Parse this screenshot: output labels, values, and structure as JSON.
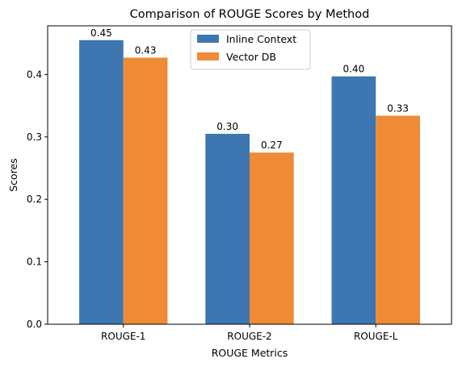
{
  "chart_data": {
    "type": "bar",
    "title": "Comparison of ROUGE Scores by Method",
    "xlabel": "ROUGE Metrics",
    "ylabel": "Scores",
    "categories": [
      "ROUGE-1",
      "ROUGE-2",
      "ROUGE-L"
    ],
    "ylim": [
      0,
      0.478
    ],
    "yticks": [
      "0.0",
      "0.1",
      "0.2",
      "0.3",
      "0.4"
    ],
    "series": [
      {
        "name": "Inline Context",
        "color": "#3d76b0",
        "values": [
          0.455,
          0.305,
          0.397
        ],
        "labels": [
          "0.45",
          "0.30",
          "0.40"
        ]
      },
      {
        "name": "Vector DB",
        "color": "#ef8a36",
        "values": [
          0.427,
          0.275,
          0.334
        ],
        "labels": [
          "0.43",
          "0.27",
          "0.33"
        ]
      }
    ],
    "legend": "top-center",
    "grid": false
  }
}
